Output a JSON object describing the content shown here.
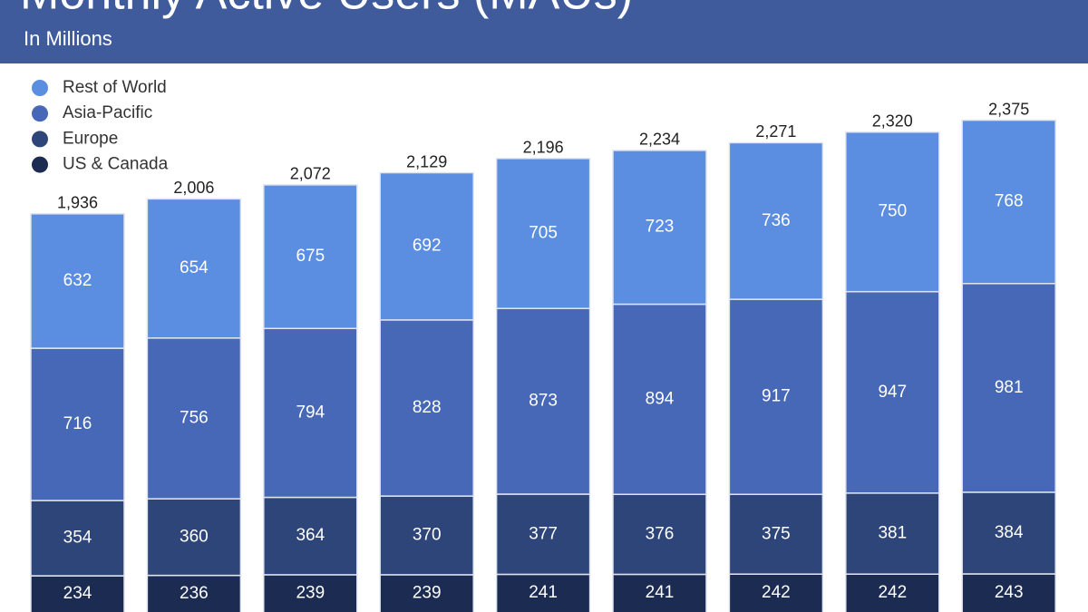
{
  "chart_data": {
    "type": "stacked_bar",
    "title": "Monthly Active Users (MAUs)",
    "subtitle": "In Millions",
    "categories": [
      null,
      null,
      null,
      null,
      null,
      null,
      null,
      null,
      null
    ],
    "series": [
      {
        "name": "US & Canada",
        "color": "#1b2b52",
        "values": [
          234,
          236,
          239,
          239,
          241,
          241,
          242,
          242,
          243
        ]
      },
      {
        "name": "Europe",
        "color": "#2e4579",
        "values": [
          354,
          360,
          364,
          370,
          377,
          376,
          375,
          381,
          384
        ]
      },
      {
        "name": "Asia-Pacific",
        "color": "#4767b7",
        "values": [
          716,
          756,
          794,
          828,
          873,
          894,
          917,
          947,
          981
        ]
      },
      {
        "name": "Rest of World",
        "color": "#5b8ee1",
        "values": [
          632,
          654,
          675,
          692,
          705,
          723,
          736,
          750,
          768
        ]
      }
    ],
    "totals": [
      1936,
      2006,
      2072,
      2129,
      2196,
      2234,
      2271,
      2320,
      2375
    ],
    "total_labels": [
      "1,936",
      "2,006",
      "2,072",
      "2,129",
      "2,196",
      "2,234",
      "2,271",
      "2,320",
      "2,375"
    ],
    "legend": "top-left"
  }
}
